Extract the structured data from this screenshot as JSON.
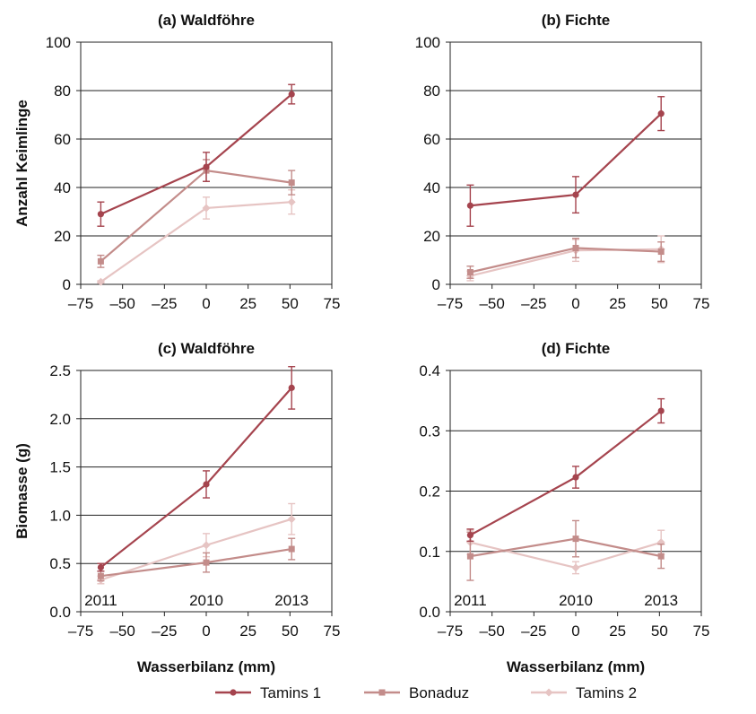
{
  "colors": {
    "Tamins 1": "#a5444e",
    "Bonaduz": "#c38c8a",
    "Tamins 2": "#e6c4c3"
  },
  "markers": {
    "Tamins 1": "circle",
    "Bonaduz": "square",
    "Tamins 2": "diamond"
  },
  "legend": [
    "Tamins 1",
    "Bonaduz",
    "Tamins 2"
  ],
  "shared_xlabel": "Wasserbilanz (mm)",
  "chart_data": [
    {
      "panel": "a",
      "type": "line",
      "title": "(a) Waldföhre",
      "ylabel": "Anzahl Keimlinge",
      "xlabel": "",
      "xlim": [
        -75,
        75
      ],
      "xticks": [
        "–75",
        "–50",
        "–25",
        "0",
        "25",
        "50",
        "75"
      ],
      "ylim": [
        0,
        100
      ],
      "yticks": [
        "0",
        "20",
        "40",
        "60",
        "80",
        "100"
      ],
      "grid": "horizontal",
      "x": [
        -63,
        0,
        51
      ],
      "year_labels": [],
      "series": [
        {
          "name": "Tamins 1",
          "values": [
            29,
            48.5,
            78.5
          ],
          "err": [
            5,
            6,
            4
          ]
        },
        {
          "name": "Bonaduz",
          "values": [
            9.5,
            47,
            42
          ],
          "err": [
            2.5,
            4.5,
            5
          ]
        },
        {
          "name": "Tamins 2",
          "values": [
            1,
            31.5,
            34
          ],
          "err": [
            0.5,
            4.5,
            5
          ]
        }
      ]
    },
    {
      "panel": "b",
      "type": "line",
      "title": "(b) Fichte",
      "ylabel": "",
      "xlabel": "",
      "xlim": [
        -75,
        75
      ],
      "xticks": [
        "–75",
        "–50",
        "–25",
        "0",
        "25",
        "50",
        "75"
      ],
      "ylim": [
        0,
        100
      ],
      "yticks": [
        "0",
        "20",
        "40",
        "60",
        "80",
        "100"
      ],
      "grid": "horizontal",
      "x": [
        -63,
        0,
        51
      ],
      "year_labels": [],
      "series": [
        {
          "name": "Tamins 1",
          "values": [
            32.5,
            37,
            70.5
          ],
          "err": [
            8.5,
            7.5,
            7
          ]
        },
        {
          "name": "Bonaduz",
          "values": [
            5,
            15,
            13.5
          ],
          "err": [
            2.5,
            4,
            4
          ]
        },
        {
          "name": "Tamins 2",
          "values": [
            3.5,
            14,
            14.5
          ],
          "err": [
            2,
            4.5,
            5.5
          ]
        }
      ]
    },
    {
      "panel": "c",
      "type": "line",
      "title": "(c) Waldföhre",
      "ylabel": "Biomasse (g)",
      "xlabel": "Wasserbilanz (mm)",
      "xlim": [
        -75,
        75
      ],
      "xticks": [
        "–75",
        "–50",
        "–25",
        "0",
        "25",
        "50",
        "75"
      ],
      "ylim": [
        0,
        2.5
      ],
      "yticks": [
        "0.0",
        "0.5",
        "1.0",
        "1.5",
        "2.0",
        "2.5"
      ],
      "grid": "horizontal",
      "x": [
        -63,
        0,
        51
      ],
      "year_labels": [
        "2011",
        "2010",
        "2013"
      ],
      "series": [
        {
          "name": "Tamins 1",
          "values": [
            0.46,
            1.32,
            2.32
          ],
          "err": [
            0.04,
            0.14,
            0.22
          ]
        },
        {
          "name": "Bonaduz",
          "values": [
            0.37,
            0.51,
            0.65
          ],
          "err": [
            0.05,
            0.1,
            0.11
          ]
        },
        {
          "name": "Tamins 2",
          "values": [
            0.33,
            0.69,
            0.96
          ],
          "err": [
            0.04,
            0.12,
            0.16
          ]
        }
      ]
    },
    {
      "panel": "d",
      "type": "line",
      "title": "(d) Fichte",
      "ylabel": "",
      "xlabel": "Wasserbilanz (mm)",
      "xlim": [
        -75,
        75
      ],
      "xticks": [
        "–75",
        "–50",
        "–25",
        "0",
        "25",
        "50",
        "75"
      ],
      "ylim": [
        0,
        0.4
      ],
      "yticks": [
        "0.0",
        "0.1",
        "0.2",
        "0.3",
        "0.4"
      ],
      "grid": "horizontal",
      "x": [
        -63,
        0,
        51
      ],
      "year_labels": [
        "2011",
        "2010",
        "2013"
      ],
      "series": [
        {
          "name": "Tamins 1",
          "values": [
            0.127,
            0.223,
            0.333
          ],
          "err": [
            0.01,
            0.018,
            0.02
          ]
        },
        {
          "name": "Bonaduz",
          "values": [
            0.092,
            0.121,
            0.092
          ],
          "err": [
            0.04,
            0.03,
            0.02
          ]
        },
        {
          "name": "Tamins 2",
          "values": [
            0.115,
            0.073,
            0.115
          ],
          "err": [
            0.02,
            0.01,
            0.02
          ]
        }
      ]
    }
  ]
}
